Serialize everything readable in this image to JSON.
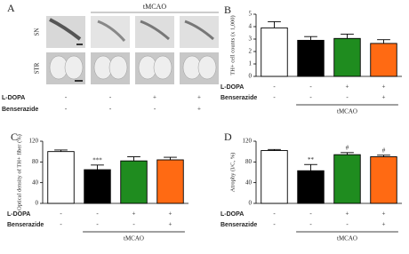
{
  "panel_a": {
    "label": "A",
    "group_label": "tMCAO",
    "rows": [
      "SN",
      "STR"
    ],
    "treatments": [
      {
        "name": "L-DOPA",
        "signs": [
          "-",
          "-",
          "+",
          "+"
        ]
      },
      {
        "name": "Benserazide",
        "signs": [
          "-",
          "-",
          "-",
          "+"
        ]
      }
    ]
  },
  "chart_data": [
    {
      "type": "bar",
      "title": "B",
      "y_label": "TH+ cell counts (x 1,000)",
      "categories": [
        null,
        null,
        null,
        null
      ],
      "values": [
        3.9,
        2.9,
        3.05,
        2.65
      ],
      "errors": [
        0.5,
        0.3,
        0.35,
        0.3
      ],
      "colors": [
        "#ffffff",
        "#000000",
        "#1f8c1f",
        "#ff6a13"
      ],
      "ylim": [
        0,
        5
      ],
      "yticks": [
        0,
        1,
        2,
        3,
        4,
        5
      ],
      "annotations": [],
      "group_label": "tMCAO",
      "treatments": [
        {
          "name": "L-DOPA",
          "signs": [
            "-",
            "-",
            "+",
            "+"
          ]
        },
        {
          "name": "Benserazide",
          "signs": [
            "-",
            "-",
            "-",
            "+"
          ]
        }
      ]
    },
    {
      "type": "bar",
      "title": "C",
      "y_label": "Optical density of TH+ fiber (%)",
      "categories": [
        null,
        null,
        null,
        null
      ],
      "values": [
        100,
        65,
        82,
        84
      ],
      "errors": [
        3,
        9,
        8,
        5
      ],
      "colors": [
        "#ffffff",
        "#000000",
        "#1f8c1f",
        "#ff6a13"
      ],
      "ylim": [
        0,
        120
      ],
      "yticks": [
        0,
        40,
        80,
        120
      ],
      "annotations": [
        {
          "bar": 1,
          "text": "***"
        }
      ],
      "group_label": "tMCAO",
      "treatments": [
        {
          "name": "L-DOPA",
          "signs": [
            "-",
            "-",
            "+",
            "+"
          ]
        },
        {
          "name": "Benserazide",
          "signs": [
            "-",
            "-",
            "-",
            "+"
          ]
        }
      ]
    },
    {
      "type": "bar",
      "title": "D",
      "y_label": "Atrophy (I/C, %)",
      "categories": [
        null,
        null,
        null,
        null
      ],
      "values": [
        102,
        63,
        94,
        90
      ],
      "errors": [
        2,
        12,
        4,
        3
      ],
      "colors": [
        "#ffffff",
        "#000000",
        "#1f8c1f",
        "#ff6a13"
      ],
      "ylim": [
        0,
        120
      ],
      "yticks": [
        0,
        40,
        80,
        120
      ],
      "annotations": [
        {
          "bar": 1,
          "text": "**"
        },
        {
          "bar": 2,
          "text": "#"
        },
        {
          "bar": 3,
          "text": "#"
        }
      ],
      "group_label": "tMCAO",
      "treatments": [
        {
          "name": "L-DOPA",
          "signs": [
            "-",
            "-",
            "+",
            "+"
          ]
        },
        {
          "name": "Benserazide",
          "signs": [
            "-",
            "-",
            "-",
            "+"
          ]
        }
      ]
    }
  ]
}
